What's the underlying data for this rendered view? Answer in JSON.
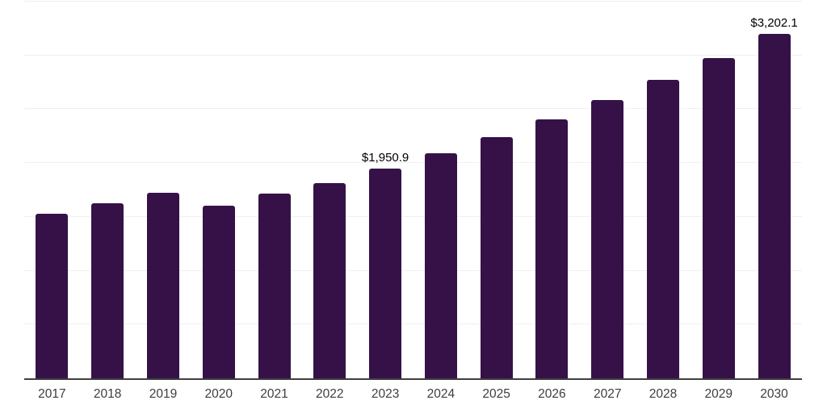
{
  "chart_data": {
    "type": "bar",
    "categories": [
      "2017",
      "2018",
      "2019",
      "2020",
      "2021",
      "2022",
      "2023",
      "2024",
      "2025",
      "2026",
      "2027",
      "2028",
      "2029",
      "2030"
    ],
    "values": [
      1528.4,
      1625.6,
      1726.5,
      1606.9,
      1719.0,
      1816.2,
      1950.9,
      2092.7,
      2242.2,
      2406.6,
      2582.2,
      2772.8,
      2974.6,
      3202.1
    ],
    "point_labels": [
      null,
      null,
      null,
      null,
      null,
      null,
      "$1,950.9",
      null,
      null,
      null,
      null,
      null,
      null,
      "$3,202.1"
    ],
    "title": "",
    "xlabel": "",
    "ylabel": "",
    "ylim": [
      0,
      3500
    ],
    "grid_interval": 500,
    "grid": true,
    "y_tick_labels_visible": false,
    "legend": "none",
    "colors": {
      "bar": "#351148",
      "grid": "#f0f0f0",
      "axis": "#3f3f3f",
      "tick_text": "#3d3d3d",
      "value_label_text": "#000000",
      "background": "#ffffff"
    }
  }
}
